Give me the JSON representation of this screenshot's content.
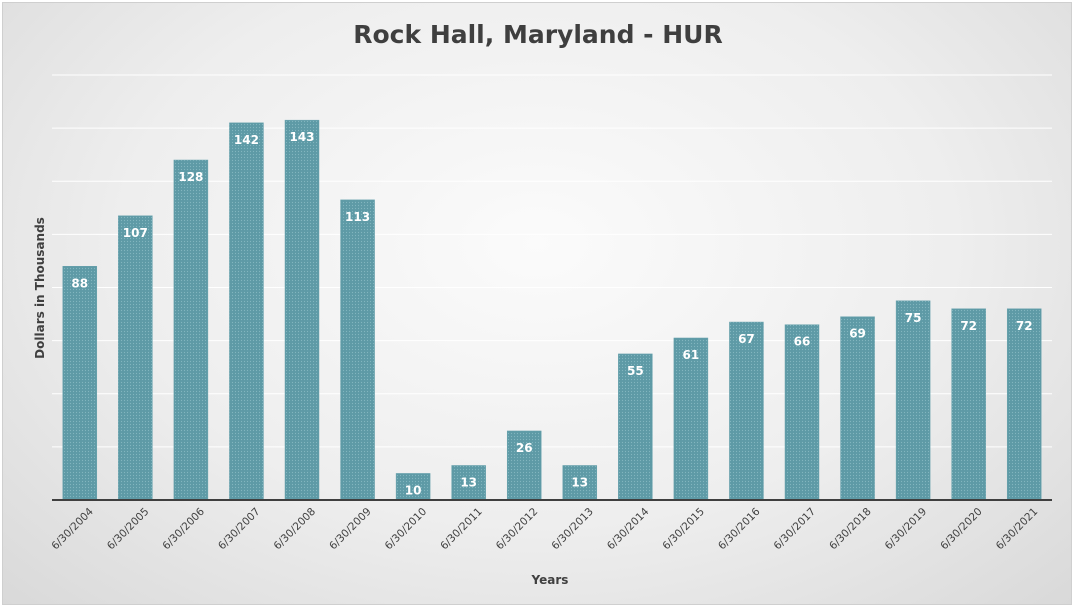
{
  "chart_data": {
    "type": "bar",
    "title": "Rock Hall, Maryland - HUR",
    "xlabel": "Years",
    "ylabel": "Dollars in Thousands",
    "categories": [
      "6/30/2004",
      "6/30/2005",
      "6/30/2006",
      "6/30/2007",
      "6/30/2008",
      "6/30/2009",
      "6/30/2010",
      "6/30/2011",
      "6/30/2012",
      "6/30/2013",
      "6/30/2014",
      "6/30/2015",
      "6/30/2016",
      "6/30/2017",
      "6/30/2018",
      "6/30/2019",
      "6/30/2020",
      "6/30/2021"
    ],
    "values": [
      88,
      107,
      128,
      142,
      143,
      113,
      10,
      13,
      26,
      13,
      55,
      61,
      67,
      66,
      69,
      75,
      72,
      72
    ],
    "ylim": [
      0,
      160
    ],
    "grid": true,
    "bar_color": "#5e9aa6",
    "label_color": "#ffffff"
  }
}
